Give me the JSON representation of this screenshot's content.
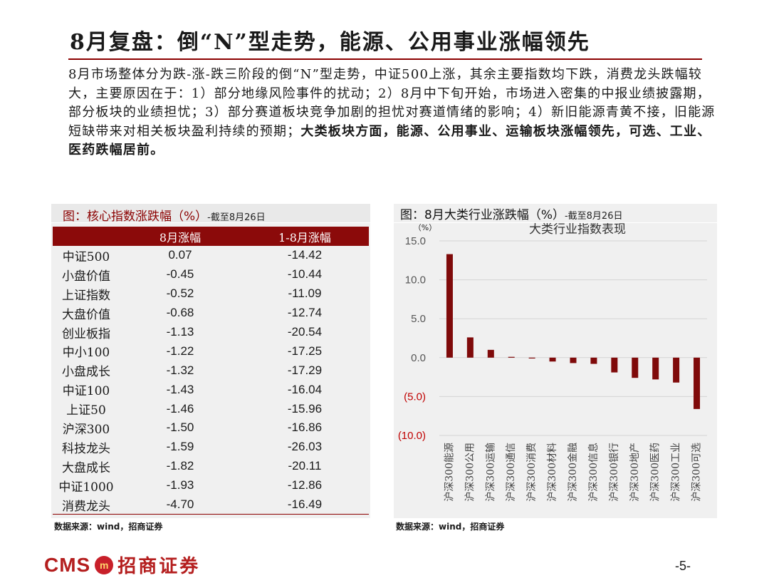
{
  "title": "8月复盘：倒“N”型走势，能源、公用事业涨幅领先",
  "paragraph": {
    "normal": "8月市场整体分为跌-涨-跌三阶段的倒“N”型走势，中证500上涨，其余主要指数均下跌，消费龙头跌幅较大，主要原因在于：1）部分地缘风险事件的扰动；2）8月中下旬开始，市场进入密集的中报业绩披露期，部分板块的业绩担忧；3）部分赛道板块竞争加剧的担忧对赛道情绪的影响；4）新旧能源青黄不接，旧能源短缺带来对相关板块盈利持续的预期；",
    "bold": "大类板块方面，能源、公用事业、运输板块涨幅领先，可选、工业、医药跌幅居前。"
  },
  "left_panel": {
    "title": "图：核心指数涨跌幅（%）",
    "subtitle": "-截至8月26日",
    "headers": [
      "8月涨幅",
      "1-8月涨幅"
    ],
    "rows": [
      {
        "name": "中证500",
        "aug": "0.07",
        "ytd": "-14.42"
      },
      {
        "name": "小盘价值",
        "aug": "-0.45",
        "ytd": "-10.44"
      },
      {
        "name": "上证指数",
        "aug": "-0.52",
        "ytd": "-11.09"
      },
      {
        "name": "大盘价值",
        "aug": "-0.68",
        "ytd": "-12.74"
      },
      {
        "name": "创业板指",
        "aug": "-1.13",
        "ytd": "-20.54"
      },
      {
        "name": "中小100",
        "aug": "-1.22",
        "ytd": "-17.25"
      },
      {
        "name": "小盘成长",
        "aug": "-1.32",
        "ytd": "-17.29"
      },
      {
        "name": "中证100",
        "aug": "-1.43",
        "ytd": "-16.04"
      },
      {
        "name": "上证50",
        "aug": "-1.46",
        "ytd": "-15.96"
      },
      {
        "name": "沪深300",
        "aug": "-1.50",
        "ytd": "-16.86"
      },
      {
        "name": "科技龙头",
        "aug": "-1.59",
        "ytd": "-26.03"
      },
      {
        "name": "大盘成长",
        "aug": "-1.82",
        "ytd": "-20.11"
      },
      {
        "name": "中证1000",
        "aug": "-1.93",
        "ytd": "-12.86"
      },
      {
        "name": "消费龙头",
        "aug": "-4.70",
        "ytd": "-16.49"
      }
    ],
    "source": "数据来源：wind，招商证券"
  },
  "right_panel": {
    "title": "图：8月大类行业涨跌幅（%）",
    "subtitle": "-截至8月26日",
    "source": "数据来源：wind，招商证券"
  },
  "chart_data": {
    "type": "bar",
    "title": "大类行业指数表现",
    "ylabel": "（%）",
    "ylim": [
      -10,
      15
    ],
    "yticks": [
      "15.0",
      "10.0",
      "5.0",
      "0.0",
      "(5.0)",
      "(10.0)"
    ],
    "ytick_values": [
      15,
      10,
      5,
      0,
      -5,
      -10
    ],
    "categories": [
      "沪深300能源",
      "沪深300公用",
      "沪深300运输",
      "沪深300通信",
      "沪深300消费",
      "沪深300材料",
      "沪深300金融",
      "沪深300信息",
      "沪深300银行",
      "沪深300地产",
      "沪深300医药",
      "沪深300工业",
      "沪深300可选"
    ],
    "values": [
      13.3,
      2.6,
      1.0,
      0.1,
      -0.1,
      -0.5,
      -0.7,
      -0.8,
      -1.9,
      -2.6,
      -2.8,
      -3.2,
      -6.6
    ],
    "bar_color": "#7f0a0a",
    "grid": true
  },
  "footer": {
    "logo_text": "CMS",
    "logo_badge": "m",
    "logo_cn": "招商证券",
    "page": "-5-"
  }
}
